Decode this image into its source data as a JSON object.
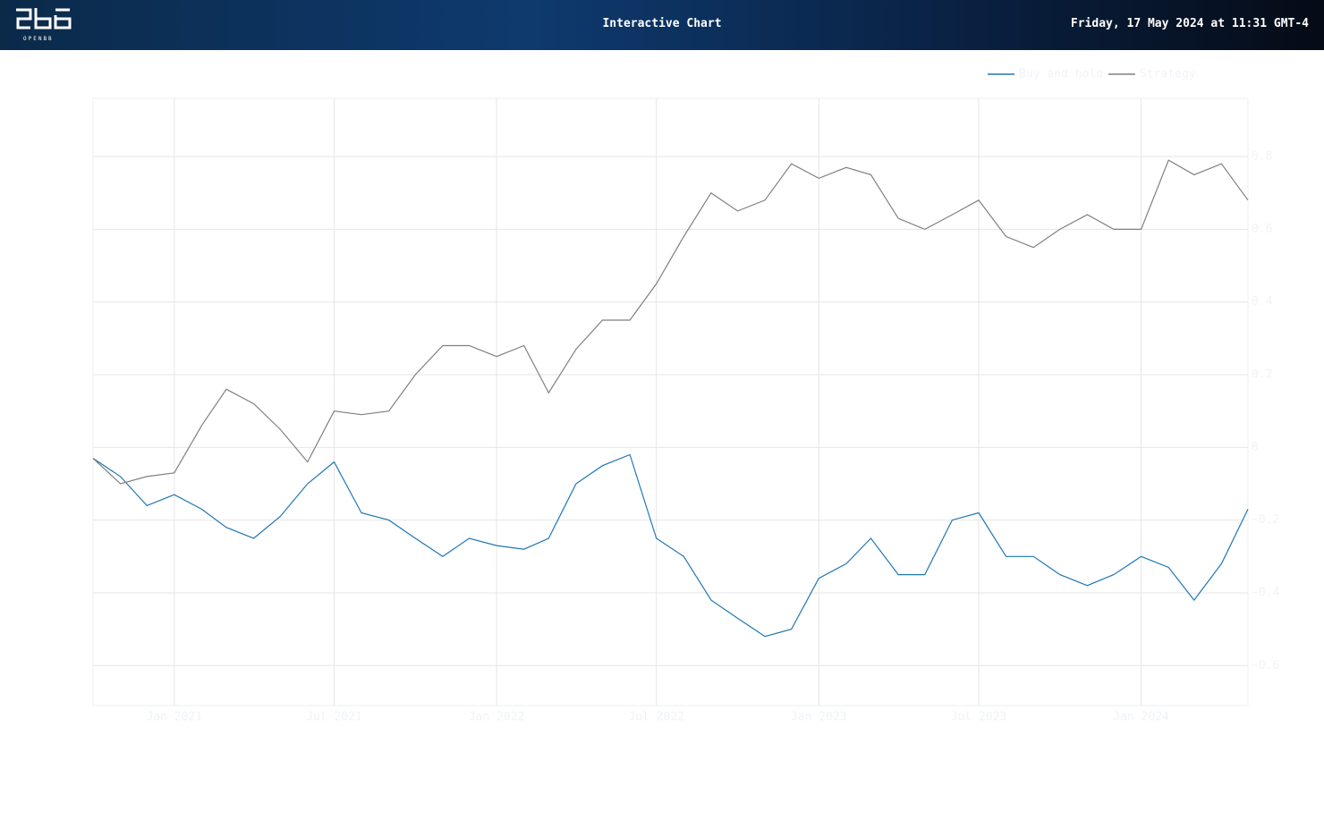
{
  "header": {
    "logo_text": "OPENBB",
    "title": "Interactive Chart",
    "timestamp": "Friday, 17 May 2024 at 11:31 GMT-4"
  },
  "chart_data": {
    "type": "line",
    "x": [
      "2020-10",
      "2020-11",
      "2020-12",
      "2021-01",
      "2021-02",
      "2021-03",
      "2021-04",
      "2021-05",
      "2021-06",
      "2021-07",
      "2021-08",
      "2021-09",
      "2021-10",
      "2021-11",
      "2021-12",
      "2022-01",
      "2022-02",
      "2022-03",
      "2022-04",
      "2022-05",
      "2022-06",
      "2022-07",
      "2022-08",
      "2022-09",
      "2022-10",
      "2022-11",
      "2022-12",
      "2023-01",
      "2023-02",
      "2023-03",
      "2023-04",
      "2023-05",
      "2023-06",
      "2023-07",
      "2023-08",
      "2023-09",
      "2023-10",
      "2023-11",
      "2023-12",
      "2024-01",
      "2024-02",
      "2024-03",
      "2024-04",
      "2024-05"
    ],
    "series": [
      {
        "name": "Buy and hold",
        "color": "#1f77b4",
        "values": [
          -0.03,
          -0.08,
          -0.16,
          -0.13,
          -0.17,
          -0.22,
          -0.25,
          -0.19,
          -0.1,
          -0.04,
          -0.18,
          -0.2,
          -0.25,
          -0.3,
          -0.25,
          -0.27,
          -0.28,
          -0.25,
          -0.1,
          -0.05,
          -0.02,
          -0.25,
          -0.3,
          -0.42,
          -0.47,
          -0.52,
          -0.5,
          -0.36,
          -0.32,
          -0.25,
          -0.35,
          -0.35,
          -0.2,
          -0.18,
          -0.3,
          -0.3,
          -0.35,
          -0.38,
          -0.35,
          -0.3,
          -0.33,
          -0.42,
          -0.32,
          -0.17
        ]
      },
      {
        "name": "Strategy",
        "color": "#808080",
        "values": [
          -0.03,
          -0.1,
          -0.08,
          -0.07,
          0.06,
          0.16,
          0.12,
          0.05,
          -0.04,
          0.1,
          0.09,
          0.1,
          0.2,
          0.28,
          0.28,
          0.25,
          0.28,
          0.15,
          0.27,
          0.35,
          0.35,
          0.45,
          0.58,
          0.7,
          0.65,
          0.68,
          0.78,
          0.74,
          0.77,
          0.75,
          0.63,
          0.6,
          0.64,
          0.68,
          0.58,
          0.55,
          0.6,
          0.64,
          0.6,
          0.6,
          0.79,
          0.75,
          0.78,
          0.68
        ]
      }
    ],
    "xlim": [
      "2020-10",
      "2024-05"
    ],
    "xticks": [
      {
        "value": "2021-01",
        "label": "Jan 2021"
      },
      {
        "value": "2021-07",
        "label": "Jul 2021"
      },
      {
        "value": "2022-01",
        "label": "Jan 2022"
      },
      {
        "value": "2022-07",
        "label": "Jul 2022"
      },
      {
        "value": "2023-01",
        "label": "Jan 2023"
      },
      {
        "value": "2023-07",
        "label": "Jul 2023"
      },
      {
        "value": "2024-01",
        "label": "Jan 2024"
      }
    ],
    "ylim": [
      -0.71,
      0.96
    ],
    "yticks": [
      {
        "value": -0.6,
        "label": "−0.6"
      },
      {
        "value": -0.4,
        "label": "−0.4"
      },
      {
        "value": -0.2,
        "label": "−0.2"
      },
      0,
      0.2,
      0.4,
      0.6,
      0.8
    ],
    "grid": true,
    "legend": "top-right"
  }
}
